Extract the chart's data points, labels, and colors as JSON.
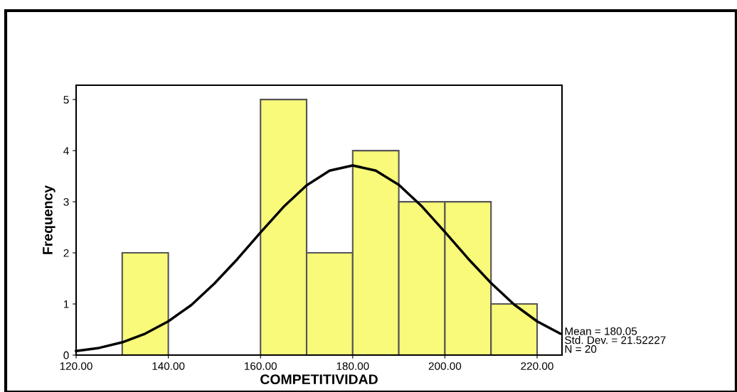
{
  "chart_data": {
    "type": "histogram",
    "xlabel": "COMPETITIVIDAD",
    "ylabel": "Frequency",
    "bins": [
      120,
      130,
      140,
      150,
      160,
      170,
      180,
      190,
      200,
      210,
      220
    ],
    "values": [
      0,
      2,
      0,
      0,
      5,
      2,
      4,
      3,
      3,
      1
    ],
    "color": "#f9f97a",
    "series": [
      {
        "type": "line",
        "color": "#000000",
        "x": [
          120,
          125,
          130,
          135,
          140,
          145,
          150,
          155,
          160,
          165,
          170,
          175,
          180,
          185,
          190,
          195,
          200,
          205,
          210,
          215,
          220,
          225
        ],
        "values": [
          0.08,
          0.14,
          0.25,
          0.42,
          0.66,
          0.98,
          1.4,
          1.88,
          2.4,
          2.9,
          3.32,
          3.61,
          3.71,
          3.61,
          3.33,
          2.91,
          2.41,
          1.89,
          1.41,
          0.99,
          0.66,
          0.42
        ]
      }
    ],
    "xlim": [
      120,
      225.4
    ],
    "ylim": [
      0,
      5.28
    ],
    "xticks": [
      {
        "value": 120,
        "label": "120.00"
      },
      {
        "value": 140,
        "label": "140.00"
      },
      {
        "value": 160,
        "label": "160.00"
      },
      {
        "value": 180,
        "label": "180.00"
      },
      {
        "value": 200,
        "label": "200.00"
      },
      {
        "value": 220,
        "label": "220.00"
      }
    ],
    "yticks": [
      0,
      1,
      2,
      3,
      4,
      5
    ],
    "annotations": [
      "Mean = 180.05",
      "Std. Dev. = 21.52227",
      "N = 20"
    ],
    "grid": false,
    "legend": false
  }
}
